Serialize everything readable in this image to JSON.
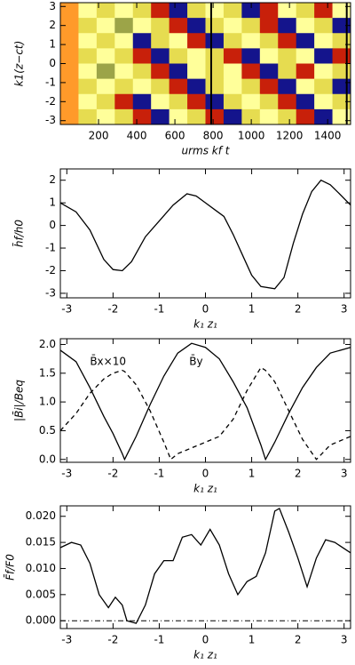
{
  "chart_data": [
    {
      "type": "heatmap",
      "xlabel": "urms kf t",
      "ylabel": "k1(z−ct)",
      "xlim": [
        0,
        1520
      ],
      "ylim": [
        -3.2,
        3.2
      ],
      "xticks": [
        200,
        400,
        600,
        800,
        1000,
        1200,
        1400
      ],
      "yticks": [
        -3,
        -2,
        -1,
        0,
        1,
        2,
        3
      ],
      "colorscale": [
        "#ff9a2a",
        "#ffff9a",
        "#e6dc50",
        "#9ca448",
        "#c8200a",
        "#14148c"
      ],
      "vlines": [
        790,
        1500
      ],
      "z": [
        [
          0,
          1,
          2,
          1,
          2,
          4,
          5,
          2,
          1,
          2,
          5,
          4,
          1,
          2,
          4,
          1
        ],
        [
          0,
          2,
          1,
          3,
          1,
          2,
          4,
          5,
          2,
          1,
          2,
          4,
          5,
          1,
          2,
          5
        ],
        [
          0,
          1,
          2,
          1,
          5,
          2,
          1,
          4,
          5,
          2,
          1,
          2,
          4,
          5,
          1,
          2
        ],
        [
          0,
          2,
          1,
          2,
          4,
          5,
          2,
          1,
          2,
          4,
          5,
          1,
          2,
          1,
          5,
          4
        ],
        [
          0,
          1,
          3,
          1,
          2,
          4,
          5,
          1,
          2,
          1,
          4,
          5,
          2,
          4,
          1,
          2
        ],
        [
          0,
          2,
          1,
          2,
          1,
          2,
          4,
          5,
          2,
          1,
          2,
          4,
          5,
          1,
          2,
          5
        ],
        [
          0,
          1,
          2,
          4,
          5,
          1,
          2,
          4,
          5,
          2,
          1,
          2,
          4,
          5,
          1,
          2
        ],
        [
          0,
          2,
          1,
          2,
          4,
          5,
          1,
          2,
          4,
          5,
          2,
          1,
          2,
          4,
          5,
          1
        ]
      ]
    },
    {
      "type": "line",
      "xlabel": "k₁ z₁",
      "ylabel": "h̄f/h0",
      "xlim": [
        -3.14,
        3.14
      ],
      "ylim": [
        -3.2,
        2.5
      ],
      "xticks": [
        -3,
        -2,
        -1,
        0,
        1,
        2,
        3
      ],
      "yticks": [
        -3,
        -2,
        -1,
        0,
        1,
        2
      ],
      "x": [
        -3.14,
        -2.8,
        -2.5,
        -2.2,
        -2.0,
        -1.8,
        -1.6,
        -1.3,
        -1.0,
        -0.7,
        -0.4,
        -0.2,
        0,
        0.2,
        0.4,
        0.6,
        0.8,
        1.0,
        1.2,
        1.5,
        1.7,
        1.9,
        2.1,
        2.3,
        2.5,
        2.7,
        2.9,
        3.14
      ],
      "series": [
        {
          "color": "#000000",
          "dash": "solid",
          "values": [
            1.0,
            0.6,
            -0.2,
            -1.5,
            -1.95,
            -2.0,
            -1.6,
            -0.5,
            0.2,
            0.9,
            1.4,
            1.3,
            1.0,
            0.7,
            0.4,
            -0.4,
            -1.3,
            -2.2,
            -2.7,
            -2.8,
            -2.3,
            -0.8,
            0.5,
            1.5,
            2.0,
            1.8,
            1.4,
            0.9
          ]
        }
      ]
    },
    {
      "type": "line",
      "xlabel": "k₁ z₁",
      "ylabel": "|B̄i|/Beq",
      "xlim": [
        -3.14,
        3.14
      ],
      "ylim": [
        -0.05,
        2.1
      ],
      "xticks": [
        -3,
        -2,
        -1,
        0,
        1,
        2,
        3
      ],
      "yticks": [
        {
          "value": 0,
          "label": "0.0"
        },
        {
          "value": 0.5,
          "label": "0.5"
        },
        {
          "value": 1,
          "label": "1.0"
        },
        {
          "value": 1.5,
          "label": "1.5"
        },
        {
          "value": 2,
          "label": "2.0"
        }
      ],
      "annotations": [
        {
          "text": "B̄x×10",
          "x": -2.5,
          "y": 1.7
        },
        {
          "text": "B̄y",
          "x": -0.35,
          "y": 1.7
        }
      ],
      "x": [
        -3.14,
        -2.8,
        -2.5,
        -2.2,
        -2.0,
        -1.8,
        -1.75,
        -1.5,
        -1.2,
        -0.9,
        -0.75,
        -0.6,
        -0.3,
        0,
        0.3,
        0.6,
        0.9,
        1.2,
        1.3,
        1.5,
        1.8,
        2.1,
        2.4,
        2.7,
        3.14
      ],
      "series": [
        {
          "color": "#000000",
          "dash": "solid",
          "values": [
            1.9,
            1.7,
            1.25,
            0.75,
            0.45,
            0.1,
            0,
            0.4,
            0.95,
            1.45,
            1.65,
            1.85,
            2.02,
            1.95,
            1.75,
            1.35,
            0.9,
            0.25,
            0,
            0.3,
            0.8,
            1.25,
            1.6,
            1.85,
            1.95
          ]
        },
        {
          "color": "#000000",
          "dash": "dashed",
          "values": [
            0.5,
            0.8,
            1.15,
            1.4,
            1.5,
            1.55,
            1.53,
            1.3,
            0.85,
            0.3,
            0,
            0.1,
            0.2,
            0.3,
            0.4,
            0.7,
            1.2,
            1.6,
            1.55,
            1.35,
            0.85,
            0.35,
            0,
            0.25,
            0.4
          ]
        }
      ]
    },
    {
      "type": "line",
      "xlabel": "k₁ z₁",
      "ylabel": "F̄f/F0",
      "xlim": [
        -3.14,
        3.14
      ],
      "ylim": [
        -0.0015,
        0.022
      ],
      "xticks": [
        -3,
        -2,
        -1,
        0,
        1,
        2,
        3
      ],
      "yticks": [
        {
          "value": 0,
          "label": "0.000"
        },
        {
          "value": 0.005,
          "label": "0.005"
        },
        {
          "value": 0.01,
          "label": "0.010"
        },
        {
          "value": 0.015,
          "label": "0.015"
        },
        {
          "value": 0.02,
          "label": "0.020"
        }
      ],
      "hline": 0,
      "x": [
        -3.14,
        -2.9,
        -2.7,
        -2.5,
        -2.3,
        -2.1,
        -1.95,
        -1.8,
        -1.7,
        -1.5,
        -1.3,
        -1.1,
        -0.9,
        -0.7,
        -0.5,
        -0.3,
        -0.1,
        0.1,
        0.3,
        0.5,
        0.7,
        0.9,
        1.1,
        1.3,
        1.5,
        1.6,
        1.8,
        2.0,
        2.2,
        2.4,
        2.6,
        2.8,
        3.14
      ],
      "series": [
        {
          "color": "#000000",
          "dash": "solid",
          "values": [
            0.014,
            0.015,
            0.0145,
            0.011,
            0.005,
            0.0025,
            0.0045,
            0.003,
            0.0,
            -0.0005,
            0.003,
            0.009,
            0.0115,
            0.0115,
            0.016,
            0.0165,
            0.0145,
            0.0175,
            0.0145,
            0.009,
            0.005,
            0.0075,
            0.0085,
            0.013,
            0.021,
            0.0215,
            0.017,
            0.012,
            0.0065,
            0.012,
            0.0155,
            0.015,
            0.013
          ]
        }
      ]
    }
  ]
}
